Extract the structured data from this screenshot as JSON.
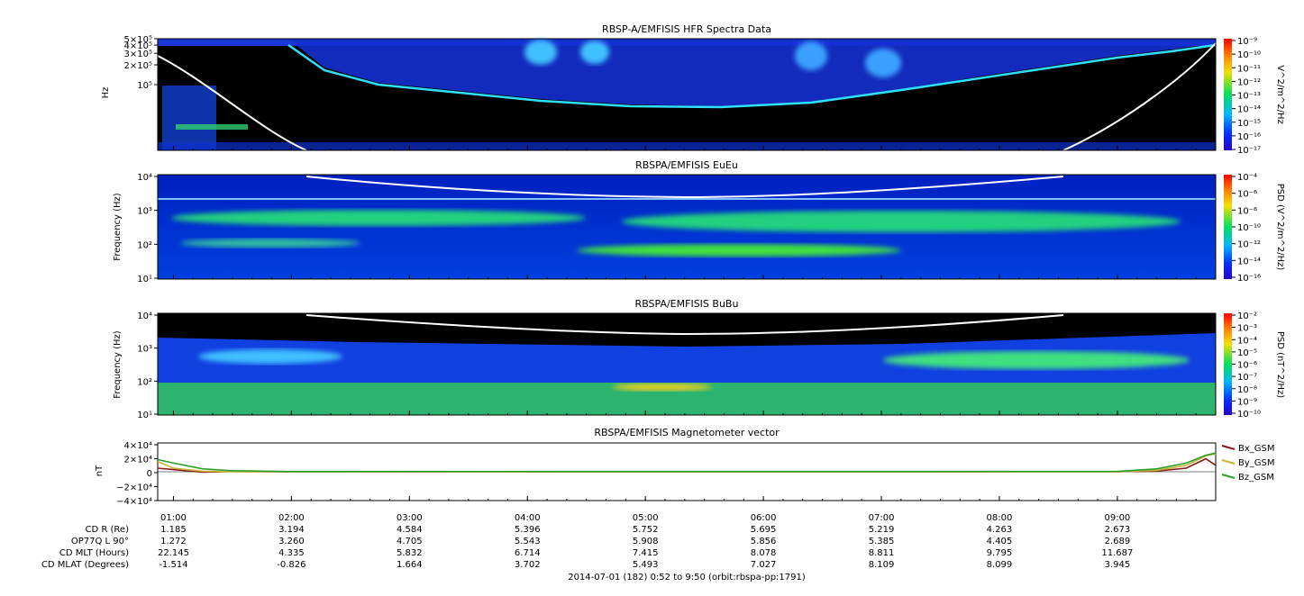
{
  "chart_data": [
    {
      "type": "heatmap",
      "title": "RBSP-A/EMFISIS  HFR Spectra Data",
      "ylabel": "Hz",
      "ylim": [
        10000,
        500000
      ],
      "y_scale": "log",
      "y_ticks": [
        "5×10⁵",
        "4×10⁵",
        "3×10⁵",
        "2×10⁵",
        "10⁵"
      ],
      "colorbar_label": "V^2/m^2/Hz",
      "colorbar_ticks": [
        "10⁻⁹",
        "10⁻¹⁰",
        "10⁻¹¹",
        "10⁻¹²",
        "10⁻¹³",
        "10⁻¹⁴",
        "10⁻¹⁵",
        "10⁻¹⁶",
        "10⁻¹⁷"
      ],
      "colorbar_range": [
        1e-17,
        1e-09
      ]
    },
    {
      "type": "heatmap",
      "title": "RBSPA/EMFISIS  EuEu",
      "ylabel": "Frequency (Hz)",
      "ylim": [
        10,
        10000
      ],
      "y_scale": "log",
      "y_ticks": [
        "10⁴",
        "10³",
        "10²",
        "10¹"
      ],
      "colorbar_label": "PSD (V^2/m^2/Hz)",
      "colorbar_ticks": [
        "10⁻⁴",
        "10⁻⁶",
        "10⁻⁸",
        "10⁻¹⁰",
        "10⁻¹²",
        "10⁻¹⁴",
        "10⁻¹⁶"
      ],
      "colorbar_range": [
        1e-16,
        0.0001
      ]
    },
    {
      "type": "heatmap",
      "title": "RBSPA/EMFISIS  BuBu",
      "ylabel": "Frequency (Hz)",
      "ylim": [
        10,
        10000
      ],
      "y_scale": "log",
      "y_ticks": [
        "10⁴",
        "10³",
        "10²",
        "10¹"
      ],
      "colorbar_label": "PSD (nT^2/Hz)",
      "colorbar_ticks": [
        "10⁻²",
        "10⁻³",
        "10⁻⁴",
        "10⁻⁵",
        "10⁻⁶",
        "10⁻⁷",
        "10⁻⁸",
        "10⁻⁹",
        "10⁻¹⁰"
      ],
      "colorbar_range": [
        1e-10,
        0.01
      ]
    },
    {
      "type": "line",
      "title": "RBSPA/EMFISIS  Magnetometer vector",
      "ylabel": "nT",
      "ylim": [
        -40000,
        40000
      ],
      "y_ticks": [
        "4×10⁴",
        "2×10⁴",
        "0",
        "−2×10⁴",
        "−4×10⁴"
      ],
      "x": [
        "00:52",
        "01:00",
        "01:15",
        "01:30",
        "02:00",
        "09:00",
        "09:20",
        "09:35",
        "09:45",
        "09:50"
      ],
      "series": [
        {
          "name": "Bx_GSM",
          "color": "#8b1a1a",
          "values": [
            5000,
            3000,
            -500,
            200,
            0,
            0,
            1000,
            5000,
            18000,
            9000
          ]
        },
        {
          "name": "By_GSM",
          "color": "#c8b43a",
          "values": [
            14000,
            5000,
            800,
            300,
            0,
            0,
            2000,
            9000,
            22000,
            25000
          ]
        },
        {
          "name": "Bz_GSM",
          "color": "#2aa02a",
          "values": [
            17000,
            12000,
            4000,
            1500,
            300,
            500,
            4000,
            12000,
            23000,
            26000
          ]
        }
      ]
    }
  ],
  "time_axis": {
    "ticks": [
      "01:00",
      "02:00",
      "03:00",
      "04:00",
      "05:00",
      "06:00",
      "07:00",
      "08:00",
      "09:00"
    ],
    "start_min": 52,
    "end_min": 590
  },
  "ephemeris": {
    "row_labels": [
      "CD R (Re)",
      "OP77Q L 90°",
      "CD MLT (Hours)",
      "CD MLAT (Degrees)"
    ],
    "rows": [
      [
        "1.185",
        "3.194",
        "4.584",
        "5.396",
        "5.752",
        "5.695",
        "5.219",
        "4.263",
        "2.673"
      ],
      [
        "1.272",
        "3.260",
        "4.705",
        "5.543",
        "5.908",
        "5.856",
        "5.385",
        "4.405",
        "2.689"
      ],
      [
        "22.145",
        "4.335",
        "5.832",
        "6.714",
        "7.415",
        "8.078",
        "8.811",
        "9.795",
        "11.687"
      ],
      [
        "-1.514",
        "-0.826",
        "1.664",
        "3.702",
        "5.493",
        "7.027",
        "8.109",
        "8.099",
        "3.945"
      ]
    ]
  },
  "footer": "2014-07-01 (182) 0:52 to 9:50 (orbit:rbspa-pp:1791)",
  "colors": {
    "background_dark": "#000000",
    "spectrogram_low": "#0a1fb8",
    "white_line": "#ffffff"
  }
}
